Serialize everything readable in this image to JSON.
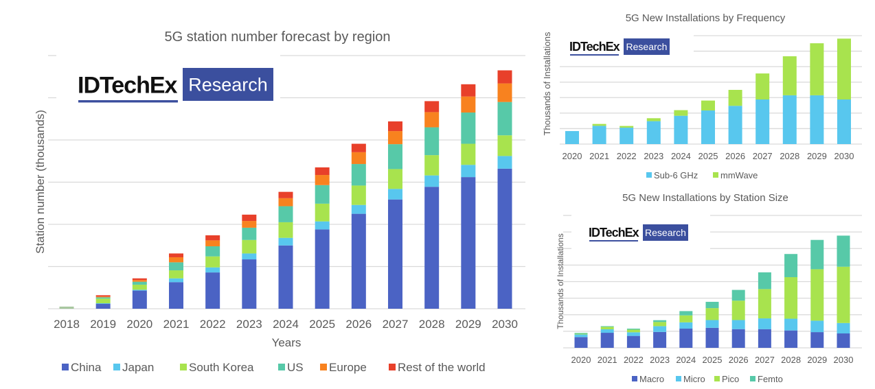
{
  "chart_data": [
    {
      "id": "region",
      "type": "bar",
      "stacked": true,
      "title": "5G station number forecast by region",
      "xlabel": "Years",
      "ylabel": "Station number (thousands)",
      "ylim": [
        0,
        6
      ],
      "y_tick_labels_shown": false,
      "grid": true,
      "legend_position": "bottom",
      "logo": {
        "brand": "IDTechEx",
        "tag": "Research"
      },
      "categories": [
        "2018",
        "2019",
        "2020",
        "2021",
        "2022",
        "2023",
        "2024",
        "2025",
        "2026",
        "2027",
        "2028",
        "2029",
        "2030"
      ],
      "series": [
        {
          "name": "China",
          "color": "#4b63c4",
          "values": [
            0.0,
            0.12,
            0.43,
            0.63,
            0.86,
            1.17,
            1.5,
            1.88,
            2.25,
            2.59,
            2.89,
            3.12,
            3.32
          ]
        },
        {
          "name": "Japan",
          "color": "#58c7ee",
          "values": [
            0.0,
            0.01,
            0.02,
            0.09,
            0.12,
            0.14,
            0.18,
            0.19,
            0.21,
            0.25,
            0.27,
            0.29,
            0.3
          ]
        },
        {
          "name": "South Korea",
          "color": "#a8e34e",
          "values": [
            0.03,
            0.11,
            0.12,
            0.19,
            0.26,
            0.32,
            0.37,
            0.42,
            0.46,
            0.47,
            0.48,
            0.5,
            0.49
          ]
        },
        {
          "name": "US",
          "color": "#57c9a8",
          "values": [
            0.02,
            0.03,
            0.07,
            0.19,
            0.24,
            0.29,
            0.38,
            0.44,
            0.51,
            0.59,
            0.66,
            0.74,
            0.79
          ]
        },
        {
          "name": "Europe",
          "color": "#f8821f",
          "values": [
            0.0,
            0.02,
            0.04,
            0.12,
            0.14,
            0.16,
            0.19,
            0.24,
            0.28,
            0.31,
            0.36,
            0.38,
            0.44
          ]
        },
        {
          "name": "Rest of the world",
          "color": "#e8402a",
          "values": [
            0.0,
            0.03,
            0.04,
            0.09,
            0.12,
            0.15,
            0.15,
            0.18,
            0.2,
            0.23,
            0.26,
            0.29,
            0.31
          ]
        }
      ]
    },
    {
      "id": "frequency",
      "type": "bar",
      "stacked": true,
      "title": "5G New Installations by Frequency",
      "xlabel": "",
      "ylabel": "Thousands of Installations",
      "ylim": [
        0,
        7
      ],
      "y_tick_labels_shown": false,
      "grid": true,
      "legend_position": "bottom",
      "logo": {
        "brand": "IDTechEx",
        "tag": "Research"
      },
      "categories": [
        "2020",
        "2021",
        "2022",
        "2023",
        "2024",
        "2025",
        "2026",
        "2027",
        "2028",
        "2029",
        "2030"
      ],
      "series": [
        {
          "name": "Sub-6 GHz",
          "color": "#58c7ee",
          "values": [
            0.84,
            1.18,
            1.06,
            1.48,
            1.83,
            2.17,
            2.47,
            2.88,
            3.15,
            3.15,
            2.88
          ]
        },
        {
          "name": "mmWave",
          "color": "#a8e34e",
          "values": [
            0.0,
            0.12,
            0.11,
            0.19,
            0.36,
            0.64,
            1.03,
            1.68,
            2.52,
            3.36,
            3.93
          ]
        }
      ]
    },
    {
      "id": "station-size",
      "type": "bar",
      "stacked": true,
      "title": "5G New Installations by Station Size",
      "xlabel": "",
      "ylabel": "Thousands of Installations",
      "ylim": [
        0,
        8
      ],
      "y_tick_labels_shown": false,
      "grid": true,
      "legend_position": "bottom",
      "logo": {
        "brand": "IDTechEx",
        "tag": "Research"
      },
      "categories": [
        "2020",
        "2021",
        "2022",
        "2023",
        "2024",
        "2025",
        "2026",
        "2027",
        "2028",
        "2029",
        "2030"
      ],
      "series": [
        {
          "name": "Macro",
          "color": "#4b63c4",
          "values": [
            0.65,
            0.91,
            0.72,
            0.96,
            1.16,
            1.21,
            1.13,
            1.13,
            1.05,
            0.95,
            0.87
          ]
        },
        {
          "name": "Micro",
          "color": "#58c7ee",
          "values": [
            0.16,
            0.21,
            0.22,
            0.35,
            0.38,
            0.47,
            0.55,
            0.65,
            0.71,
            0.69,
            0.63
          ]
        },
        {
          "name": "Pico",
          "color": "#a8e34e",
          "values": [
            0.04,
            0.15,
            0.16,
            0.25,
            0.42,
            0.72,
            1.17,
            1.77,
            2.51,
            3.11,
            3.4
          ]
        },
        {
          "name": "Femto",
          "color": "#57c9a8",
          "values": [
            0.05,
            0.04,
            0.06,
            0.11,
            0.26,
            0.38,
            0.65,
            1.01,
            1.4,
            1.77,
            1.88
          ]
        }
      ]
    }
  ]
}
